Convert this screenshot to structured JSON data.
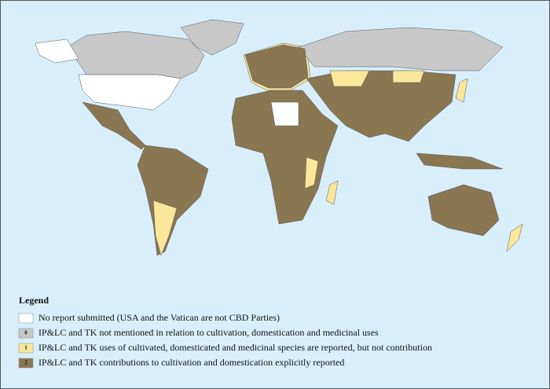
{
  "legend": {
    "title": "Legend",
    "items": [
      {
        "label": "No report submitted (USA and the Vatican are not CBD Parties)",
        "color": "#ffffff"
      },
      {
        "key": "0",
        "label": "IP&LC and TK not mentioned in relation to cultivation, domestication and medicinal uses",
        "color": "#c8c8c8"
      },
      {
        "key": "1",
        "label": "IP&LC and TK uses of cultivated, domesticated and medicinal species are reported, but not contribution",
        "color": "#fbe79a"
      },
      {
        "key": "2",
        "label": "IP&LC and TK contributions to cultivation and domestication explicitly reported",
        "color": "#8b7652"
      }
    ]
  }
}
